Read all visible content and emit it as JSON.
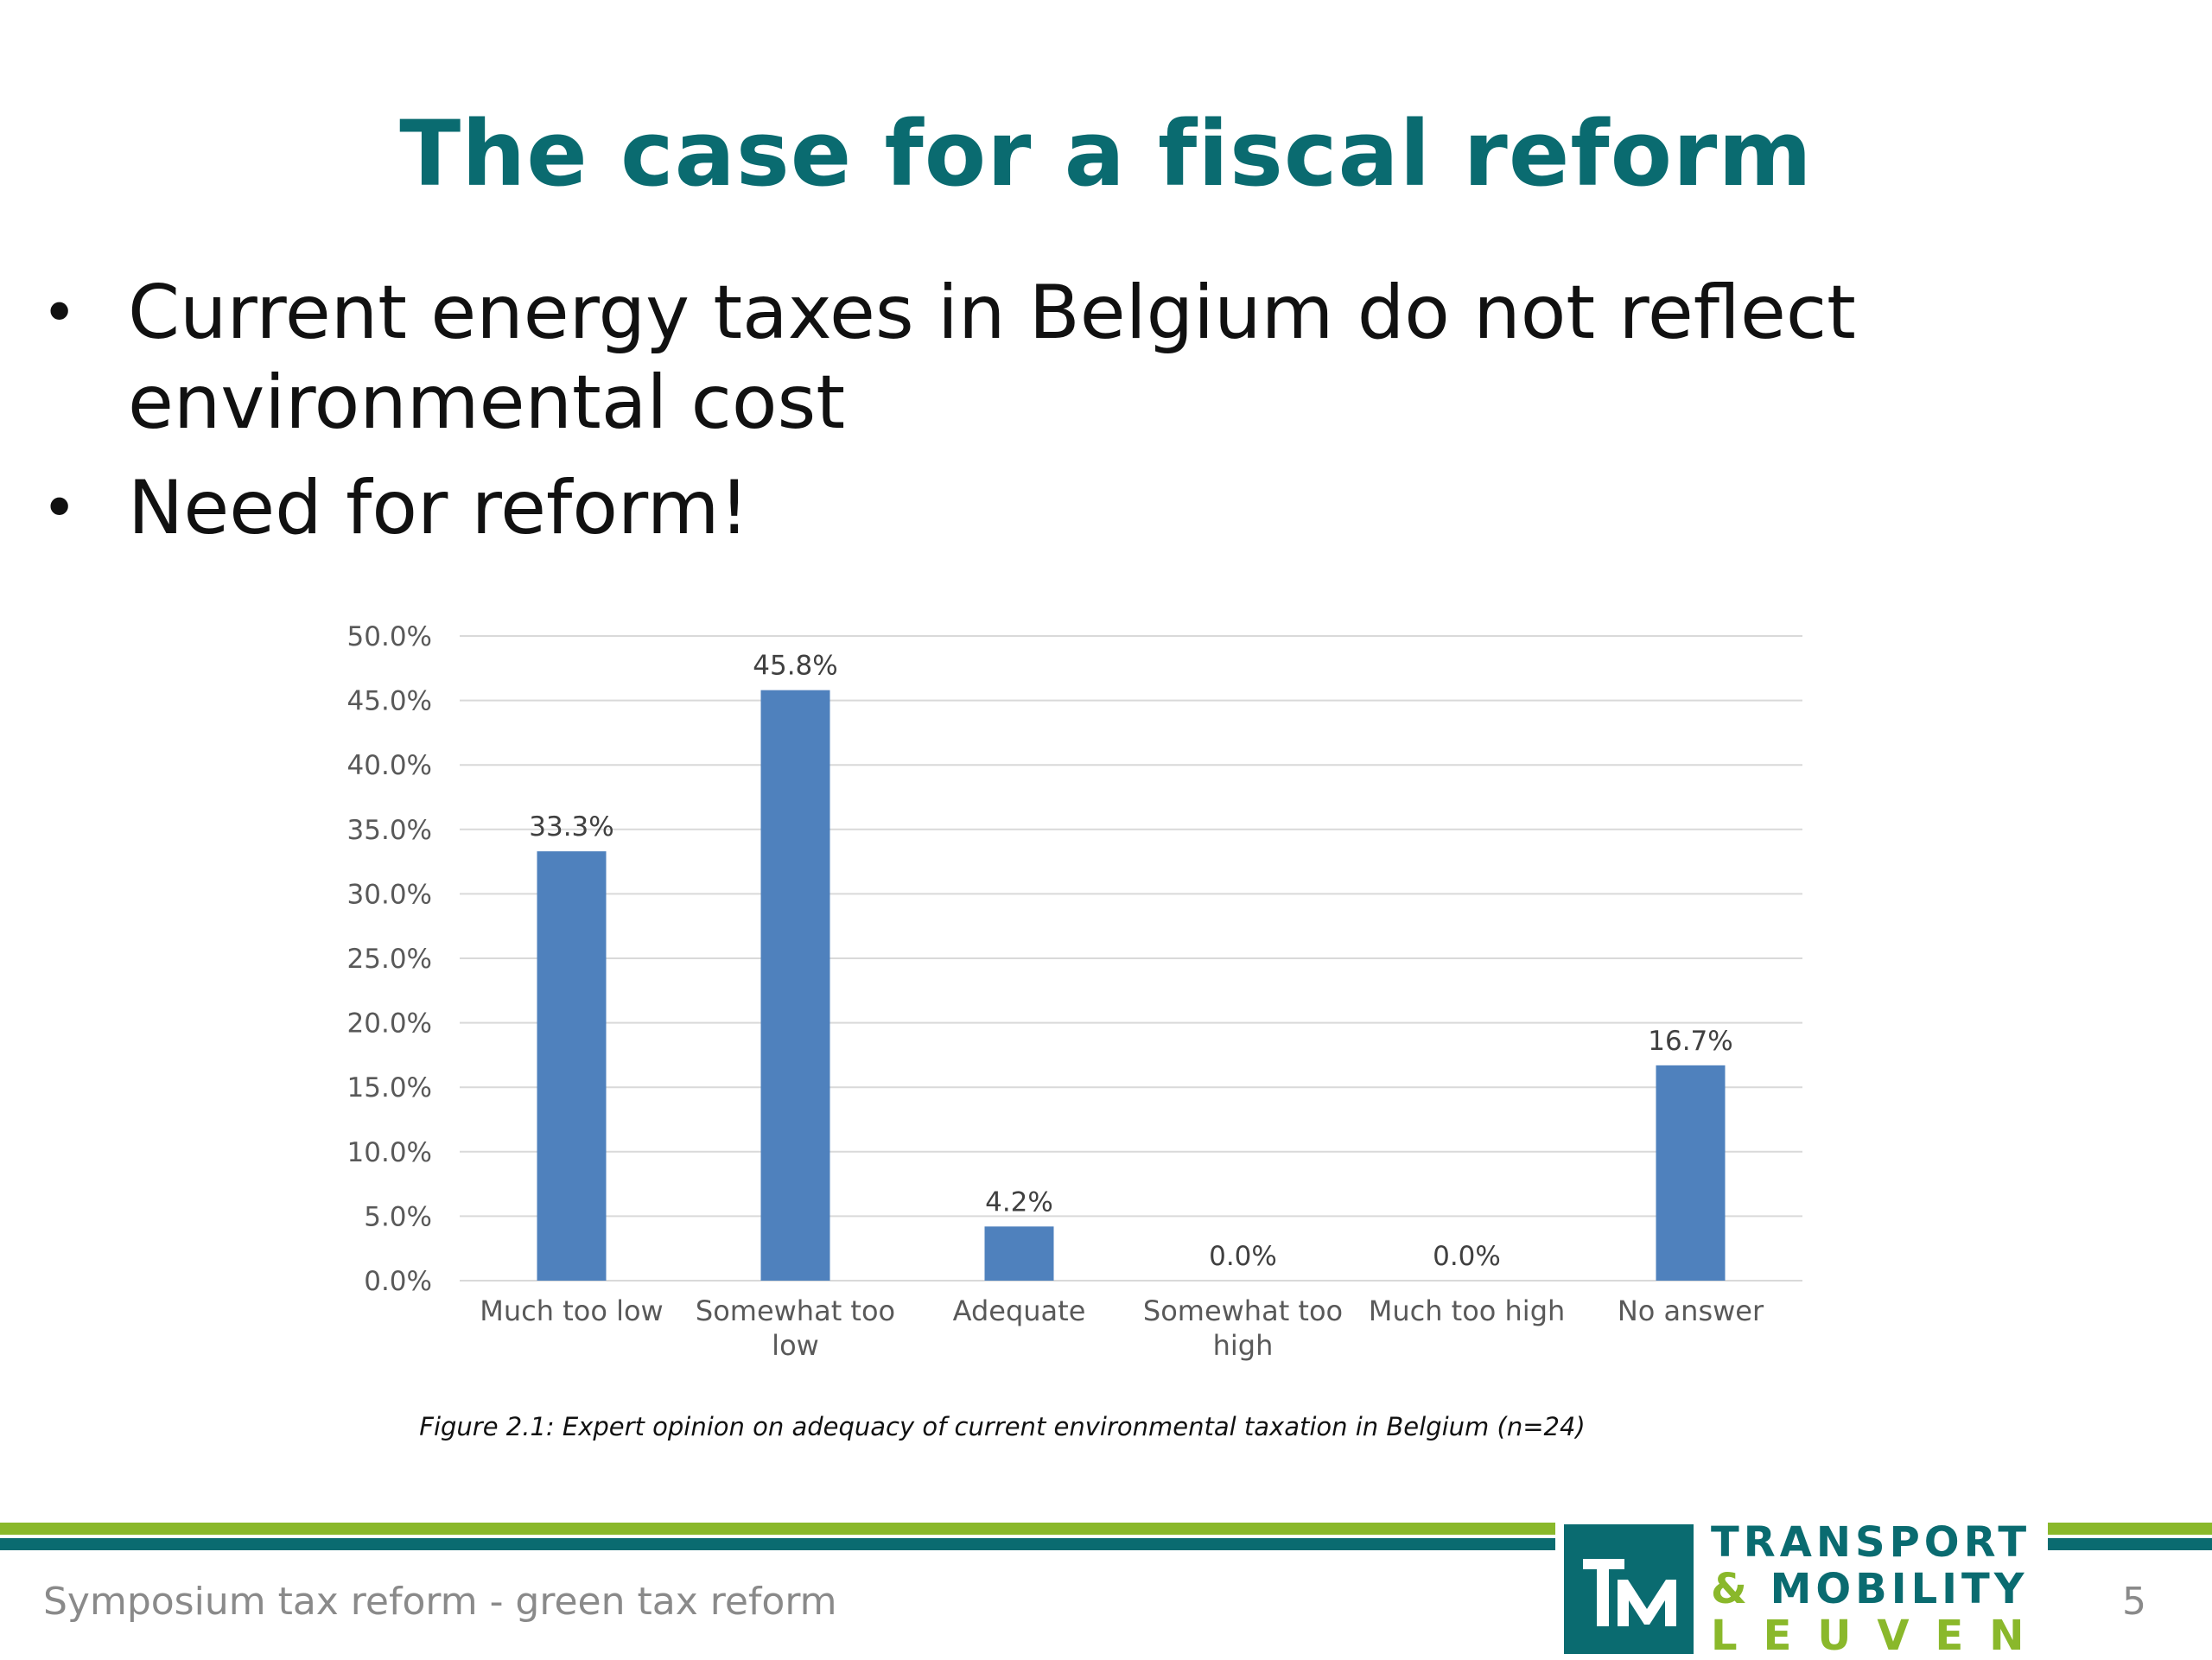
{
  "slide": {
    "title": "The case for a fiscal reform",
    "bullets": [
      "Current energy taxes in Belgium do not reflect environmental cost",
      "Need for reform!"
    ],
    "caption": "Figure 2.1: Expert opinion on adequacy of current environmental taxation in Belgium (n=24)",
    "footer": "Symposium tax reform - green tax reform",
    "page_number": "5",
    "logo": {
      "line1": "TRANSPORT",
      "amp": "&",
      "line2": "MOBILITY",
      "line3": "LEUVEN"
    }
  },
  "colors": {
    "title": "#0a6b70",
    "bar": "#4f81bd",
    "green_band": "#8ab82b",
    "teal_band": "#0a6b70"
  },
  "chart_data": {
    "type": "bar",
    "categories": [
      [
        "Much too low"
      ],
      [
        "Somewhat too",
        "low"
      ],
      [
        "Adequate"
      ],
      [
        "Somewhat too",
        "high"
      ],
      [
        "Much too high"
      ],
      [
        "No answer"
      ]
    ],
    "values": [
      33.3,
      45.8,
      4.2,
      0.0,
      0.0,
      16.7
    ],
    "value_labels": [
      "33.3%",
      "45.8%",
      "4.2%",
      "0.0%",
      "0.0%",
      "16.7%"
    ],
    "y_ticks": [
      "0.0%",
      "5.0%",
      "10.0%",
      "15.0%",
      "20.0%",
      "25.0%",
      "30.0%",
      "35.0%",
      "40.0%",
      "45.0%",
      "50.0%"
    ],
    "ylim": [
      0,
      50
    ],
    "grid": true,
    "legend": false
  }
}
